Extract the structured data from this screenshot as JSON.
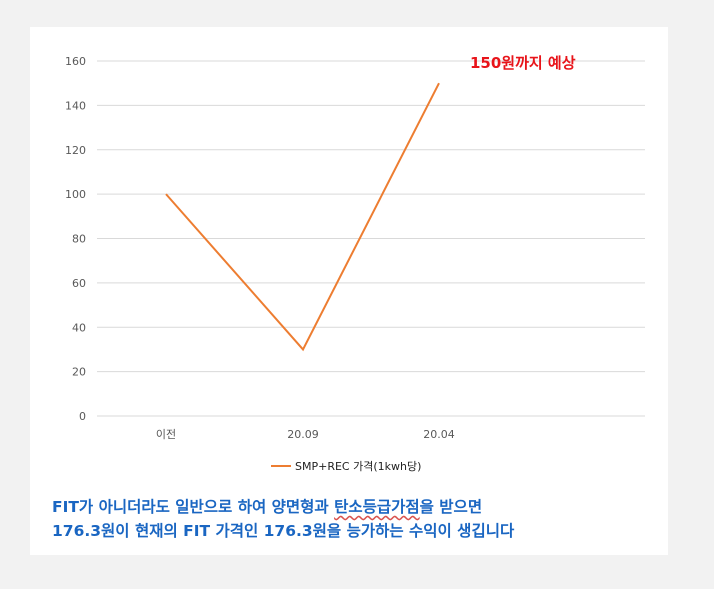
{
  "chart_data": {
    "type": "line",
    "categories": [
      "이전",
      "20.09",
      "20.04"
    ],
    "series": [
      {
        "name": "SMP+REC 가격(1kwh당)",
        "values": [
          100,
          30,
          150
        ],
        "color": "#ed7d31"
      }
    ],
    "yticks": [
      "0",
      "20",
      "40",
      "60",
      "80",
      "100",
      "120",
      "140",
      "160"
    ],
    "ylim": [
      0,
      160
    ],
    "grid": true,
    "legend_position": "bottom",
    "annotation": {
      "text": "150원까지 예상",
      "color": "#e8141a"
    }
  },
  "caption": {
    "line1_a": "FIT가 아니더라도 일반으로 하여 양면형과 ",
    "line1_b": "탄소등급가점",
    "line1_c": "을 받으면",
    "line2": "176.3원이 현재의 FIT 가격인 176.3원을 능가하는 수익이 생깁니다",
    "color": "#1a66c2"
  }
}
